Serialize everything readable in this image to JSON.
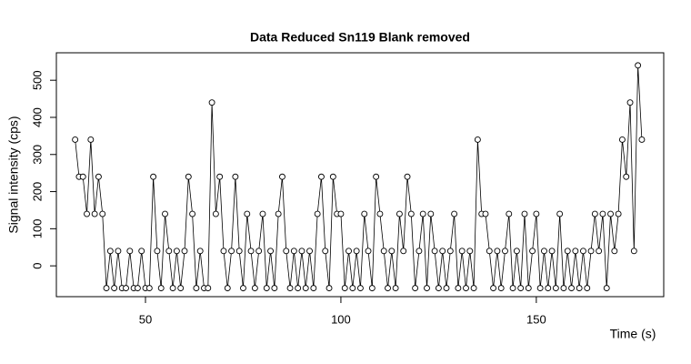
{
  "chart_data": {
    "type": "line",
    "title": "Data Reduced Sn119 Blank removed",
    "x_label": "Time (s)",
    "y_label": "Signal intensity (cps)",
    "xlim": [
      27.2,
      182.6
    ],
    "ylim": [
      -83,
      574
    ],
    "xticks": [
      50,
      100,
      150
    ],
    "yticks": [
      0,
      100,
      200,
      300,
      400,
      500
    ],
    "color": "#000000",
    "x": [
      32,
      33,
      34,
      35,
      36,
      37,
      38,
      39,
      40,
      41,
      42,
      43,
      44,
      45,
      46,
      47,
      48,
      49,
      50,
      51,
      52,
      53,
      54,
      55,
      56,
      57,
      58,
      59,
      60,
      61,
      62,
      63,
      64,
      65,
      66,
      67,
      68,
      69,
      70,
      71,
      72,
      73,
      74,
      75,
      76,
      77,
      78,
      79,
      80,
      81,
      82,
      83,
      84,
      85,
      86,
      87,
      88,
      89,
      90,
      91,
      92,
      93,
      94,
      95,
      96,
      97,
      98,
      99,
      100,
      101,
      102,
      103,
      104,
      105,
      106,
      107,
      108,
      109,
      110,
      111,
      112,
      113,
      114,
      115,
      116,
      117,
      118,
      119,
      120,
      121,
      122,
      123,
      124,
      125,
      126,
      127,
      128,
      129,
      130,
      131,
      132,
      133,
      134,
      135,
      136,
      137,
      138,
      139,
      140,
      141,
      142,
      143,
      144,
      145,
      146,
      147,
      148,
      149,
      150,
      151,
      152,
      153,
      154,
      155,
      156,
      157,
      158,
      159,
      160,
      161,
      162,
      163,
      164,
      165,
      166,
      167,
      168,
      169,
      170,
      171,
      172,
      173,
      174,
      175,
      176,
      177
    ],
    "values": [
      340,
      240,
      240,
      140,
      340,
      140,
      240,
      140,
      -60,
      40,
      -60,
      40,
      -60,
      -60,
      40,
      -60,
      -60,
      40,
      -60,
      -60,
      240,
      40,
      -60,
      140,
      40,
      -60,
      40,
      -60,
      40,
      240,
      140,
      -60,
      40,
      -60,
      -60,
      440,
      140,
      240,
      40,
      -60,
      40,
      240,
      40,
      -60,
      140,
      40,
      -60,
      40,
      140,
      -60,
      40,
      -60,
      140,
      240,
      40,
      -60,
      40,
      -60,
      40,
      -60,
      40,
      -60,
      140,
      240,
      40,
      -60,
      240,
      140,
      140,
      -60,
      40,
      -60,
      40,
      -60,
      140,
      40,
      -60,
      240,
      140,
      40,
      -60,
      40,
      -60,
      140,
      40,
      240,
      140,
      -60,
      40,
      140,
      -60,
      140,
      40,
      -60,
      40,
      -60,
      40,
      140,
      -60,
      40,
      -60,
      40,
      -60,
      340,
      140,
      140,
      40,
      -60,
      40,
      -60,
      40,
      140,
      -60,
      40,
      -60,
      140,
      -60,
      40,
      140,
      -60,
      40,
      -60,
      40,
      -60,
      140,
      -60,
      40,
      -60,
      40,
      -60,
      40,
      -60,
      40,
      140,
      40,
      140,
      -60,
      140,
      40,
      140,
      340,
      240,
      440,
      40,
      540,
      340
    ]
  }
}
